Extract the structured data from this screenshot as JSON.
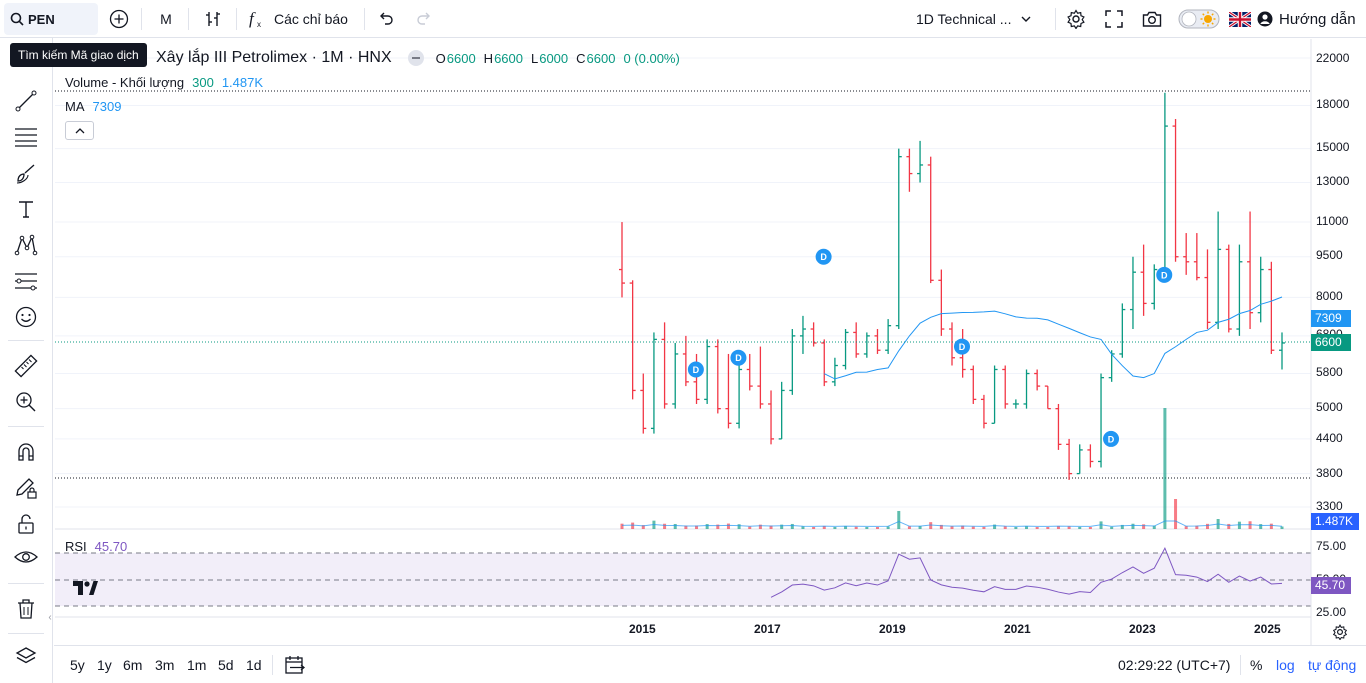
{
  "toolbar": {
    "symbol": "PEN",
    "interval": "M",
    "indicators_label": "Các chỉ báo",
    "layout_name": "1D Technical ...",
    "guide_label": "Hướng dẫn"
  },
  "tooltip": "Tìm kiếm Mã giao dịch",
  "legend": {
    "symbol_title": "Xây lắp III Petrolimex · 1M · HNX",
    "open_label": "O",
    "open": "6600",
    "high_label": "H",
    "high": "6600",
    "low_label": "L",
    "low": "6000",
    "close_label": "C",
    "close": "6600",
    "change": "0 (0.00%)"
  },
  "volume_legend": {
    "label": "Volume - Khối lượng",
    "value": "300",
    "ma_value": "1.487K"
  },
  "ma_legend": {
    "label": "MA",
    "value": "7309"
  },
  "rsi_legend": {
    "label": "RSI",
    "value": "45.70"
  },
  "price_axis": [
    "22000",
    "18000",
    "15000",
    "13000",
    "11000",
    "9500",
    "8000",
    "6800",
    "5800",
    "5000",
    "4400",
    "3800",
    "3300"
  ],
  "rsi_axis": [
    "75.00",
    "50.00",
    "25.00"
  ],
  "badges": {
    "ma": "7309",
    "price": "6600",
    "volume": "1.487K",
    "rsi": "45.70"
  },
  "time_axis": [
    "2015",
    "2017",
    "2019",
    "2021",
    "2023",
    "2025"
  ],
  "bottom": {
    "ranges": [
      "5y",
      "1y",
      "6m",
      "3m",
      "1m",
      "5d",
      "1d"
    ],
    "clock": "02:29:22 (UTC+7)",
    "percent": "%",
    "log": "log",
    "auto": "tự động"
  },
  "dividend_marker": "D",
  "colors": {
    "up": "#089981",
    "down": "#f23645",
    "ma": "#2196f3",
    "rsi": "#7e57c2",
    "price_line": "#089981",
    "accent": "#2962ff"
  },
  "chart_data": {
    "type": "candlestick",
    "title": "Xây lắp III Petrolimex · 1M · HNX",
    "x_range": [
      "2014-11",
      "2025-03"
    ],
    "y_scale": "log",
    "ylim": [
      3000,
      23000
    ],
    "last_price": 6600,
    "ma_last": 7309,
    "series": [
      {
        "name": "Price",
        "ohlc": [
          [
            "2014-11",
            9000,
            11000,
            8000,
            8500
          ],
          [
            "2014-12",
            8500,
            8600,
            5200,
            5400
          ],
          [
            "2015-01",
            5400,
            5800,
            4500,
            4600
          ],
          [
            "2015-02",
            4600,
            6900,
            4500,
            6700
          ],
          [
            "2015-03",
            6700,
            7200,
            5000,
            5100
          ],
          [
            "2015-04",
            5100,
            6600,
            5000,
            6300
          ],
          [
            "2015-05",
            6300,
            6800,
            5500,
            5600
          ],
          [
            "2015-06",
            5600,
            6300,
            5100,
            5200
          ],
          [
            "2015-07",
            5200,
            6700,
            5100,
            6500
          ],
          [
            "2015-08",
            6500,
            6700,
            4900,
            5000
          ],
          [
            "2015-09",
            5000,
            6300,
            4600,
            4700
          ],
          [
            "2015-10",
            4700,
            6000,
            4600,
            5900
          ],
          [
            "2015-11",
            5900,
            6300,
            5400,
            5500
          ],
          [
            "2015-12",
            5500,
            6500,
            5000,
            5100
          ],
          [
            "2016-01",
            5100,
            5400,
            4300,
            4400
          ],
          [
            "2016-02",
            4400,
            5600,
            4400,
            5400
          ],
          [
            "2016-03",
            5400,
            7000,
            5300,
            6800
          ],
          [
            "2016-04",
            6800,
            7400,
            6300,
            7000
          ],
          [
            "2016-05",
            7000,
            7200,
            6500,
            6600
          ],
          [
            "2016-06",
            6600,
            6700,
            5500,
            5600
          ],
          [
            "2016-07",
            5600,
            6200,
            5500,
            6000
          ],
          [
            "2016-08",
            6000,
            7000,
            5900,
            6900
          ],
          [
            "2016-09",
            6900,
            7200,
            6200,
            6300
          ],
          [
            "2016-10",
            6300,
            6900,
            6200,
            6800
          ],
          [
            "2016-11",
            6800,
            7000,
            6300,
            6400
          ],
          [
            "2016-12",
            6400,
            7300,
            6300,
            7100
          ],
          [
            "2017-01",
            7100,
            15000,
            7000,
            14500
          ],
          [
            "2017-02",
            14500,
            15000,
            12500,
            13500
          ],
          [
            "2017-03",
            13500,
            15500,
            13000,
            14000
          ],
          [
            "2017-04",
            14000,
            14500,
            8500,
            8600
          ],
          [
            "2017-05",
            8600,
            9000,
            6800,
            7000
          ],
          [
            "2017-06",
            7000,
            7200,
            6000,
            6200
          ],
          [
            "2017-07",
            6200,
            7000,
            5700,
            5900
          ],
          [
            "2017-08",
            5900,
            6000,
            5100,
            5200
          ],
          [
            "2017-09",
            5200,
            5300,
            4600,
            4700
          ],
          [
            "2017-10",
            4700,
            6000,
            4700,
            5900
          ],
          [
            "2017-11",
            5900,
            6000,
            5000,
            5100
          ],
          [
            "2017-12",
            5100,
            5200,
            5000,
            5100
          ],
          [
            "2018-01",
            5100,
            5900,
            5000,
            5800
          ],
          [
            "2018-02",
            5800,
            5900,
            5400,
            5500
          ],
          [
            "2018-03",
            5500,
            5500,
            5000,
            5000
          ],
          [
            "2018-04",
            5000,
            5100,
            4200,
            4300
          ],
          [
            "2018-05",
            4300,
            4400,
            3700,
            3800
          ],
          [
            "2018-06",
            3800,
            4300,
            3800,
            4200
          ],
          [
            "2018-07",
            4200,
            4300,
            3900,
            4000
          ],
          [
            "2018-08",
            4000,
            5800,
            3900,
            5700
          ],
          [
            "2018-09",
            5700,
            6400,
            5600,
            6300
          ],
          [
            "2018-10",
            6300,
            7800,
            6200,
            7600
          ],
          [
            "2018-11",
            7600,
            9500,
            7000,
            8900
          ],
          [
            "2018-12",
            8900,
            10000,
            7400,
            7800
          ],
          [
            "2019-01",
            7800,
            9200,
            7600,
            9000
          ],
          [
            "2019-02",
            9000,
            19000,
            8800,
            16500
          ],
          [
            "2019-03",
            16500,
            17000,
            9300,
            9500
          ],
          [
            "2019-04",
            9500,
            10500,
            8800,
            9300
          ],
          [
            "2019-05",
            9300,
            10500,
            8600,
            8700
          ],
          [
            "2019-06",
            8700,
            9800,
            7000,
            7200
          ],
          [
            "2019-07",
            7200,
            11500,
            7000,
            9800
          ],
          [
            "2019-08",
            9800,
            10000,
            6900,
            7000
          ],
          [
            "2019-09",
            7000,
            10000,
            6800,
            9300
          ],
          [
            "2019-10",
            9300,
            11500,
            7000,
            7500
          ],
          [
            "2019-11",
            7500,
            9500,
            7200,
            9000
          ],
          [
            "2019-12",
            9000,
            9300,
            6300,
            6400
          ],
          [
            "2020-01",
            6400,
            6900,
            5900,
            6600
          ]
        ]
      },
      {
        "name": "Volume",
        "ma_last": "1.487K",
        "last": 300
      },
      {
        "name": "MA",
        "last": 7309
      },
      {
        "name": "RSI",
        "last": 45.7,
        "bands": [
          70,
          50,
          30
        ]
      }
    ]
  }
}
